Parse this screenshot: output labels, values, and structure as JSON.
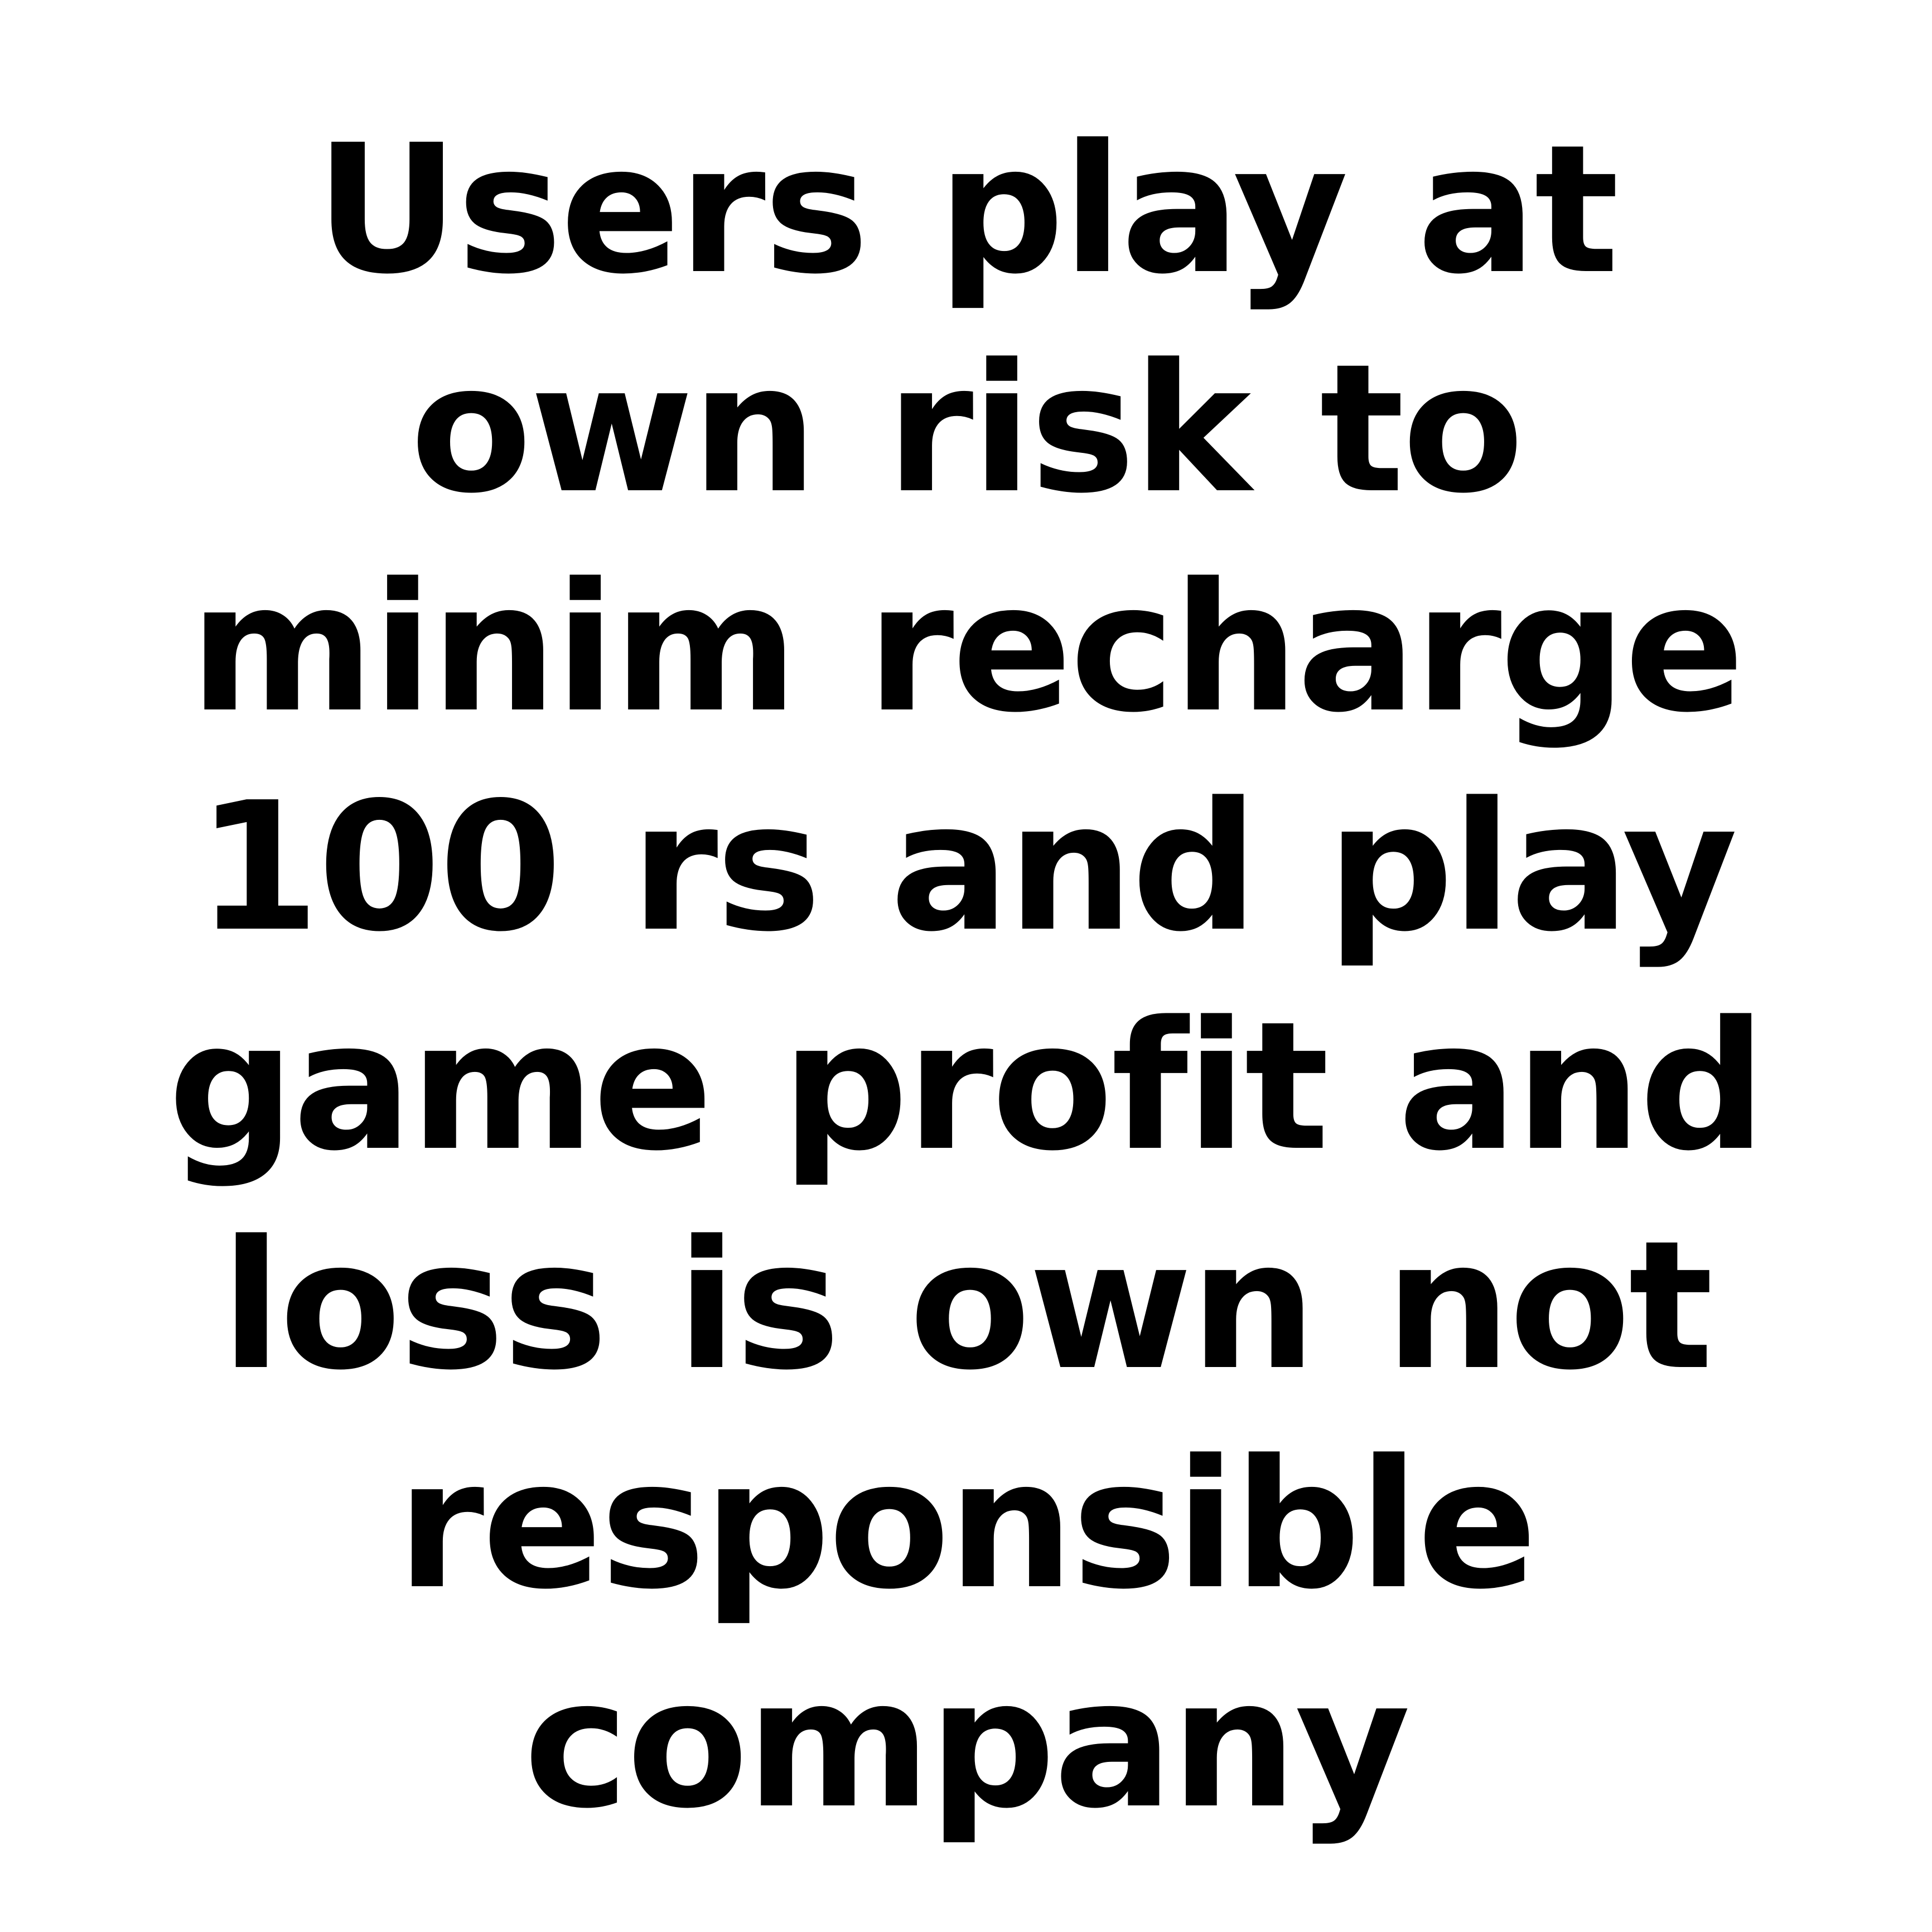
{
  "notice": {
    "lines": [
      "Users play at",
      "own risk to",
      "minim recharge",
      "100 rs and play",
      "game profit and",
      "loss is own not",
      "responsible",
      "company"
    ]
  },
  "colors": {
    "background": "#ffffff",
    "text": "#000000"
  }
}
